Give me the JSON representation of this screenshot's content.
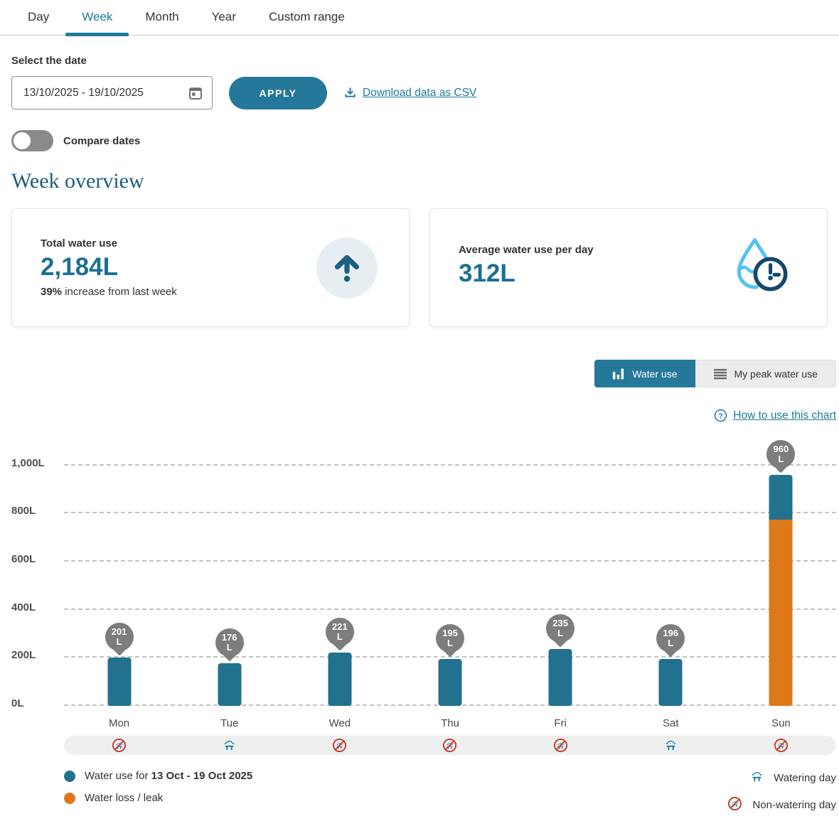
{
  "tabs": {
    "items": [
      {
        "label": "Day",
        "active": false
      },
      {
        "label": "Week",
        "active": true
      },
      {
        "label": "Month",
        "active": false
      },
      {
        "label": "Year",
        "active": false
      },
      {
        "label": "Custom range",
        "active": false
      }
    ]
  },
  "filters": {
    "select_label": "Select the date",
    "date_value": "13/10/2025 - 19/10/2025",
    "apply_label": "APPLY",
    "download_label": "Download data as CSV",
    "compare_label": "Compare dates",
    "compare_on": false
  },
  "overview": {
    "title": "Week overview",
    "cards": [
      {
        "title": "Total water use",
        "value": "2,184L",
        "note_bold": "39%",
        "note_rest": " increase from last week",
        "icon": "arrow-up-circle-icon"
      },
      {
        "title": "Average water use per day",
        "value": "312L",
        "icon": "droplet-clock-icon"
      }
    ]
  },
  "controls": {
    "buttons": [
      {
        "label": "Water use",
        "active": true,
        "icon": "bar-chart-icon"
      },
      {
        "label": "My peak water use",
        "active": false,
        "icon": "list-rows-icon"
      }
    ],
    "help_label": "How to use this chart"
  },
  "chart_data": {
    "type": "bar",
    "stacked": true,
    "title": "Water use by day, 13 Oct - 19 Oct 2025",
    "categories": [
      "Mon",
      "Tue",
      "Wed",
      "Thu",
      "Fri",
      "Sat",
      "Sun"
    ],
    "series": [
      {
        "name": "Water use for 13 Oct - 19 Oct 2025",
        "color": "#21718f",
        "values": [
          201,
          176,
          221,
          195,
          235,
          196,
          185
        ]
      },
      {
        "name": "Water loss / leak",
        "color": "#de7818",
        "values": [
          0,
          0,
          0,
          0,
          0,
          0,
          775
        ]
      }
    ],
    "totals": [
      201,
      176,
      221,
      195,
      235,
      196,
      960
    ],
    "unit": "L",
    "y_ticks": [
      0,
      200,
      400,
      600,
      800,
      1000
    ],
    "y_tick_labels": [
      "0L",
      "200L",
      "400L",
      "600L",
      "800L",
      "1,000L"
    ],
    "ylim": [
      0,
      1000
    ],
    "grid": "dashed horizontal",
    "watering_days": [
      "non-watering",
      "watering",
      "non-watering",
      "non-watering",
      "non-watering",
      "watering",
      "non-watering"
    ]
  },
  "legend": {
    "water_use_prefix": "Water use for ",
    "water_use_date": "13 Oct - 19 Oct 2025",
    "water_loss": "Water loss / leak",
    "watering": "Watering day",
    "non_watering": "Non-watering day"
  },
  "colors": {
    "accent": "#26789a",
    "active_tab": "#1d7a9b",
    "bar_teal": "#21718f",
    "bar_orange": "#de7818",
    "pin_gray": "#7d7d7d",
    "link": "#1c7997",
    "heading": "#1d5b7d",
    "value_text": "#1d6f94",
    "watering_blue": "#1f7a9c",
    "non_watering_red": "#c23a2b",
    "droplet_cyan": "#55c3ef",
    "clock_navy": "#12486b"
  }
}
